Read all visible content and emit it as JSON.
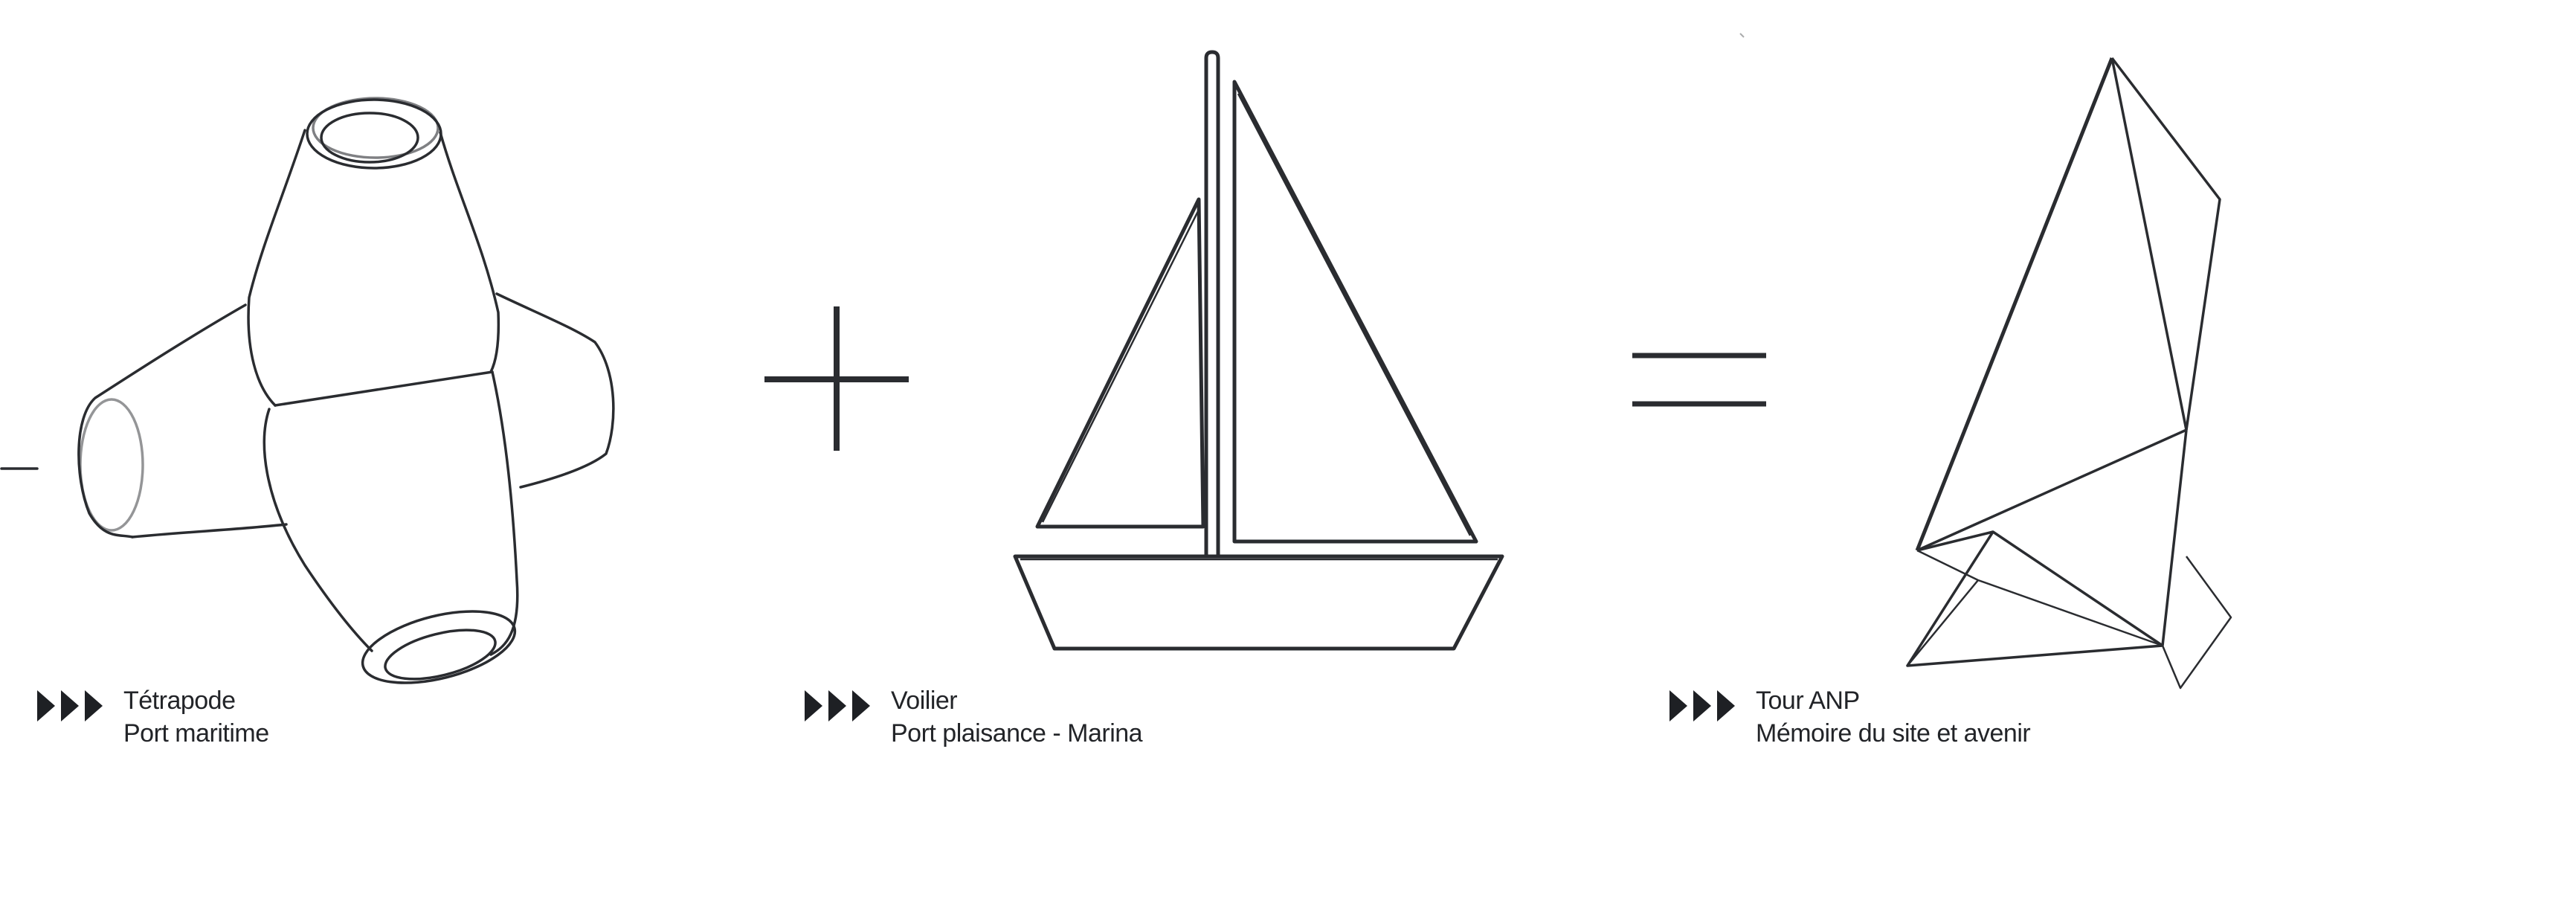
{
  "items": [
    {
      "icon": "tetrapod-icon",
      "title": "Tétrapode",
      "subtitle": "Port maritime"
    },
    {
      "icon": "sailboat-icon",
      "title": "Voilier",
      "subtitle": "Port plaisance - Marina"
    },
    {
      "icon": "anp-tower-icon",
      "title": "Tour ANP",
      "subtitle": "Mémoire du site et avenir"
    }
  ],
  "operators": [
    {
      "icon": "plus-icon"
    },
    {
      "icon": "equals-icon"
    }
  ],
  "colors": {
    "ink": "#222428",
    "background": "#ffffff"
  }
}
